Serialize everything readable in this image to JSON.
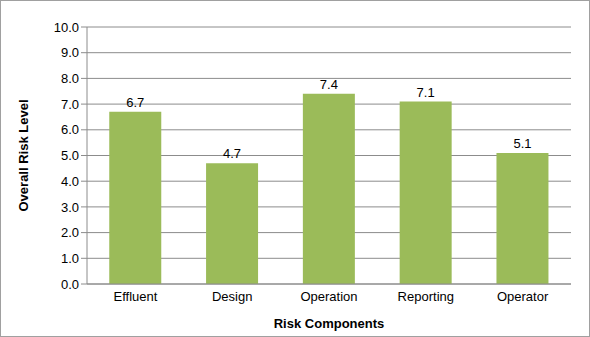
{
  "chart_data": {
    "type": "bar",
    "x_label": "Risk Components",
    "y_label": "Overall Risk Level",
    "categories": [
      "Effluent",
      "Design",
      "Operation",
      "Reporting",
      "Operator"
    ],
    "values": [
      6.7,
      4.7,
      7.4,
      7.1,
      5.1
    ],
    "color": "#9bbb59",
    "ylim": [
      0,
      10
    ],
    "yticks": [
      {
        "value": 0,
        "label": "0.0"
      },
      {
        "value": 1,
        "label": "1.0"
      },
      {
        "value": 2,
        "label": "2.0"
      },
      {
        "value": 3,
        "label": "3.0"
      },
      {
        "value": 4,
        "label": "4.0"
      },
      {
        "value": 5,
        "label": "5.0"
      },
      {
        "value": 6,
        "label": "6.0"
      },
      {
        "value": 7,
        "label": "7.0"
      },
      {
        "value": 8,
        "label": "8.0"
      },
      {
        "value": 9,
        "label": "9.0"
      },
      {
        "value": 10,
        "label": "10.0"
      }
    ],
    "grid": true,
    "data_labels": true
  }
}
